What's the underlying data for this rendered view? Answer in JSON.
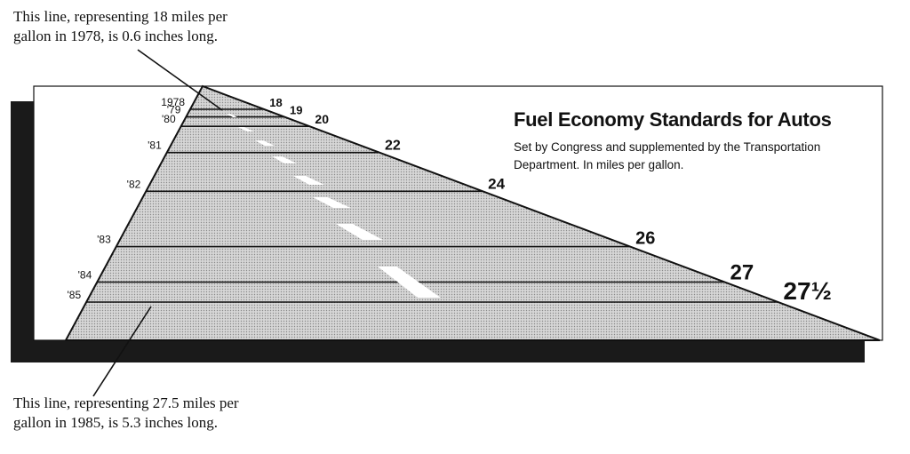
{
  "annotations": {
    "top": {
      "line1": "This line, representing 18 miles per",
      "line2": "gallon in 1978, is 0.6 inches long."
    },
    "bottom": {
      "line1": "This line, representing 27.5 miles per",
      "line2": "gallon in 1985, is 5.3 inches long."
    }
  },
  "chart_data": {
    "type": "bar",
    "title": "Fuel Economy Standards for Autos",
    "subtitle_line1": "Set by Congress and supplemented by the Transportation",
    "subtitle_line2": "Department. In miles per gallon.",
    "categories": [
      "1978",
      "'79",
      "'80",
      "'81",
      "'82",
      "'83",
      "'84",
      "'85"
    ],
    "values": [
      18,
      19,
      20,
      22,
      24,
      26,
      27,
      27.5
    ],
    "value_labels": [
      "18",
      "19",
      "20",
      "22",
      "24",
      "26",
      "27",
      "27½"
    ],
    "colors": {
      "frame_shadow": "#1a1a1a",
      "road_fill": "#c9c9c9",
      "lines": "#111111"
    }
  }
}
